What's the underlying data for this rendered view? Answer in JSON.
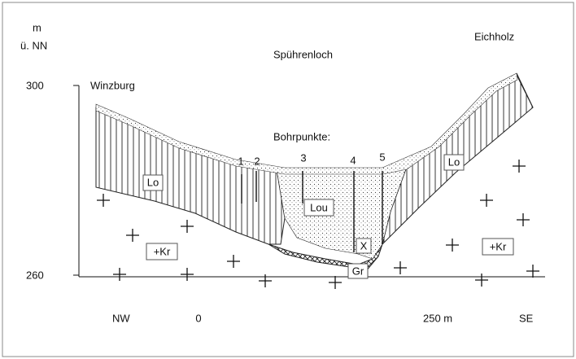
{
  "axis": {
    "unit": "m",
    "datum": "ü. NN",
    "elevations": [
      "300",
      "260"
    ],
    "directions": [
      "NW",
      "SE"
    ],
    "distances": [
      "0",
      "250 m"
    ]
  },
  "places": [
    "Winzburg",
    "Spührenloch",
    "Eichholz"
  ],
  "boreholes": {
    "title": "Bohrpunkte:",
    "labels": [
      "1",
      "2",
      "3",
      "4",
      "5"
    ]
  },
  "units": {
    "loess_left": "Lo",
    "loess_right": "Lo",
    "lou": "Lou",
    "x": "X",
    "gravel": "Gr",
    "granite_left": "+Kr",
    "granite_right": "+Kr"
  }
}
